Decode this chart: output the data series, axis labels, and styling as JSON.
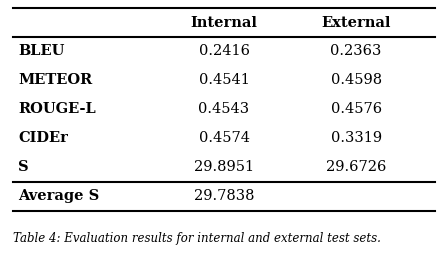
{
  "header": [
    "",
    "Internal",
    "External"
  ],
  "rows": [
    [
      "BLEU",
      "0.2416",
      "0.2363"
    ],
    [
      "METEOR",
      "0.4541",
      "0.4598"
    ],
    [
      "ROUGE-L",
      "0.4543",
      "0.4576"
    ],
    [
      "CIDEr",
      "0.4574",
      "0.3319"
    ],
    [
      "S",
      "29.8951",
      "29.6726"
    ]
  ],
  "footer_row": [
    "Average S",
    "29.7838",
    ""
  ],
  "background_color": "#ffffff",
  "text_color": "#000000",
  "font_size": 10.5,
  "header_font_size": 10.5,
  "caption": "Table 4: Evaluation results for internal and external test sets.",
  "caption_fontsize": 8.5
}
